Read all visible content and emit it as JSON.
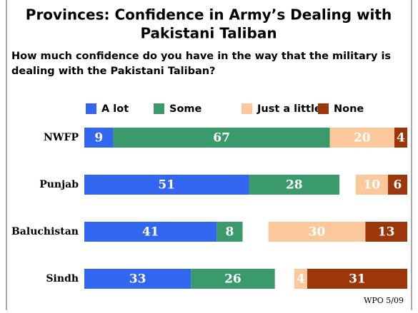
{
  "chart_data": {
    "type": "bar",
    "orientation": "horizontal",
    "stacked": true,
    "title": [
      "Provinces: Confidence in Army’s Dealing with",
      "Pakistani Taliban"
    ],
    "subtitle": [
      "How much confidence do you have in the way that the military is",
      "dealing with the Pakistani Taliban?"
    ],
    "categories": [
      "NWFP",
      "Punjab",
      "Baluchistan",
      "Sindh"
    ],
    "series": [
      {
        "name": "A lot",
        "color": "#3366ee",
        "anchor": "left",
        "values": [
          9,
          51,
          41,
          33
        ]
      },
      {
        "name": "Some",
        "color": "#3a9a6c",
        "anchor": "left",
        "values": [
          67,
          28,
          8,
          26
        ]
      },
      {
        "name": "Just a little",
        "color": "#fbc89c",
        "anchor": "right",
        "values": [
          20,
          10,
          30,
          4
        ]
      },
      {
        "name": "None",
        "color": "#9c370c",
        "anchor": "right",
        "values": [
          4,
          6,
          13,
          31
        ]
      }
    ],
    "xlim": [
      0,
      100
    ],
    "note": "WPO 5/09"
  }
}
